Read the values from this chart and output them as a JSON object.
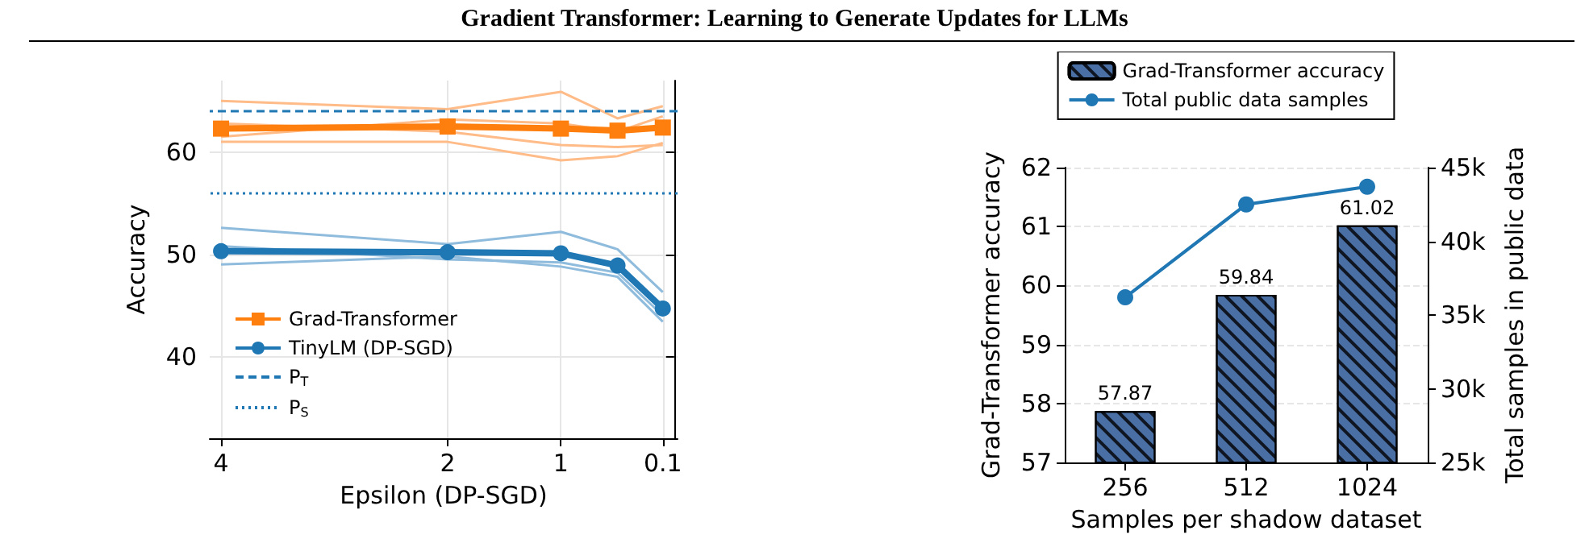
{
  "chart_data": [
    {
      "type": "line",
      "title": "Gradient Transformer: Learning to Generate Updates for LLMs",
      "xlabel": "Epsilon (DP-SGD)",
      "ylabel": "Accuracy",
      "x": [
        4,
        2,
        1,
        0.5,
        0.1
      ],
      "xlim": [
        4.1,
        -0.03
      ],
      "xticks": [
        4,
        2,
        1,
        0.1
      ],
      "ylim": [
        32,
        67
      ],
      "yticks": [
        40,
        50,
        60
      ],
      "grid": true,
      "legend": "bottom left",
      "series": [
        {
          "color": "#ffbb88",
          "marker": "none",
          "values": [
            65.0,
            64.2,
            65.9,
            63.3,
            64.5
          ]
        },
        {
          "color": "#ffbb88",
          "marker": "none",
          "values": [
            61.0,
            61.0,
            59.2,
            59.6,
            60.9
          ]
        },
        {
          "color": "#ffbb88",
          "marker": "none",
          "values": [
            61.5,
            63.2,
            62.8,
            62.0,
            63.5
          ]
        },
        {
          "color": "#ffbb88",
          "marker": "none",
          "values": [
            62.8,
            62.0,
            60.7,
            60.5,
            60.7
          ]
        },
        {
          "color": "#8fbbdc",
          "marker": "none",
          "values": [
            52.6,
            51.0,
            52.2,
            50.5,
            46.3
          ]
        },
        {
          "color": "#8fbbdc",
          "marker": "none",
          "values": [
            49.0,
            49.8,
            48.8,
            47.8,
            43.4
          ]
        },
        {
          "color": "#8fbbdc",
          "marker": "none",
          "values": [
            50.8,
            49.5,
            49.2,
            48.2,
            44.0
          ]
        },
        {
          "name": "Grad-Transformer",
          "color": "#ff7f0e",
          "marker": "square",
          "values": [
            62.3,
            62.5,
            62.3,
            62.1,
            62.4
          ]
        },
        {
          "name": "TinyLM (DP-SGD)",
          "color": "#1f77b4",
          "marker": "circle",
          "values": [
            50.3,
            50.2,
            50.1,
            48.9,
            44.7
          ]
        }
      ],
      "ref_lines": [
        {
          "axis": "y",
          "value": 64,
          "label": "P$_{T}$",
          "color": "#1f77b4",
          "line_style": "dashed"
        },
        {
          "axis": "y",
          "value": 56,
          "label": "P$_{S}$",
          "color": "#1f77b4",
          "line_style": "dotted"
        }
      ]
    },
    {
      "type": "bar",
      "xlabel": "Samples per shadow dataset",
      "ylabel": "Grad-Transformer accuracy",
      "y2label": "Total samples in public data",
      "categories": [
        "256",
        "512",
        "1024"
      ],
      "ylim": [
        57,
        62
      ],
      "yticks": [
        57,
        58,
        59,
        60,
        61,
        62
      ],
      "y2lim": [
        25000,
        45000
      ],
      "y2ticks": [
        {
          "value": 25000,
          "label": "25k"
        },
        {
          "value": 30000,
          "label": "30k"
        },
        {
          "value": 35000,
          "label": "35k"
        },
        {
          "value": 40000,
          "label": "40k"
        },
        {
          "value": 45000,
          "label": "45k"
        }
      ],
      "grid": "y",
      "legend": "top",
      "series": [
        {
          "name": "Grad-Transformer accuracy",
          "color": "#4a6fa5",
          "values": [
            57.87,
            59.84,
            61.02
          ],
          "value_labels": [
            "57.87",
            "59.84",
            "61.02"
          ]
        },
        {
          "name": "Total public data samples",
          "type": "line",
          "axis": "y2",
          "marker": "circle",
          "color": "#1f77b4",
          "values": [
            36200,
            42500,
            43700
          ]
        }
      ]
    }
  ]
}
